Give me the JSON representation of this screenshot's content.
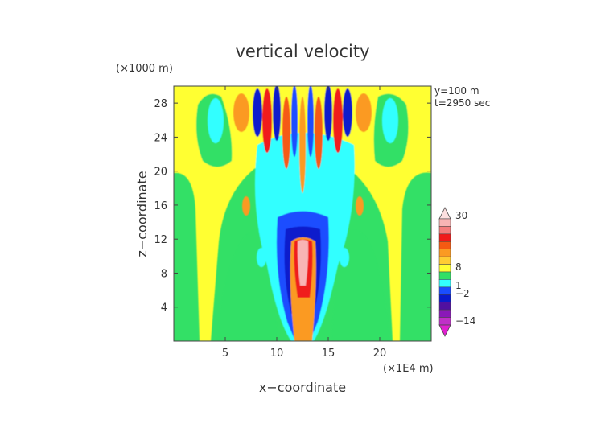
{
  "chart_data": {
    "type": "heatmap",
    "title": "vertical velocity",
    "xlabel": "x−coordinate",
    "ylabel": "z−coordinate",
    "x_unit": "(×1E4 m)",
    "y_unit": "(×1000 m)",
    "annotations": [
      "y=100 m",
      "t=2950 sec"
    ],
    "xlim": [
      0,
      25
    ],
    "ylim": [
      0,
      30
    ],
    "x_ticks": [
      5,
      10,
      15,
      20
    ],
    "y_ticks": [
      4,
      8,
      12,
      16,
      20,
      24,
      28
    ],
    "colorbar": {
      "labels": [
        "30",
        "8",
        "1",
        "−2",
        "−14"
      ],
      "colors": [
        "#fce0e0",
        "#f8b4b4",
        "#f47c7c",
        "#f01a1a",
        "#f55a12",
        "#fb9a22",
        "#ffcc33",
        "#ffff33",
        "#33e066",
        "#33ffff",
        "#1a4dff",
        "#0a1acc",
        "#5010a0",
        "#8a18b8",
        "#c030c8",
        "#e020d0"
      ]
    }
  }
}
